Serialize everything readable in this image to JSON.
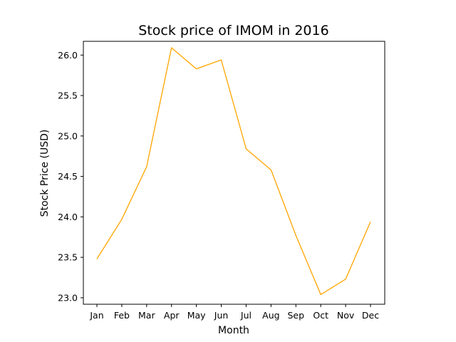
{
  "chart_data": {
    "type": "line",
    "title": "Stock price of IMOM in 2016",
    "xlabel": "Month",
    "ylabel": "Stock Price (USD)",
    "categories": [
      "Jan",
      "Feb",
      "Mar",
      "Apr",
      "May",
      "Jun",
      "Jul",
      "Aug",
      "Sep",
      "Oct",
      "Nov",
      "Dec"
    ],
    "series": [
      {
        "values": [
          23.48,
          23.97,
          24.62,
          26.09,
          25.83,
          25.94,
          24.84,
          24.58,
          23.77,
          23.04,
          23.23,
          23.94
        ],
        "color": "#ffa500"
      }
    ],
    "yticks": [
      "23.0",
      "23.5",
      "24.0",
      "24.5",
      "25.0",
      "25.5",
      "26.0"
    ],
    "ylim": [
      22.92,
      26.17
    ],
    "grid": false,
    "legend": "none"
  }
}
